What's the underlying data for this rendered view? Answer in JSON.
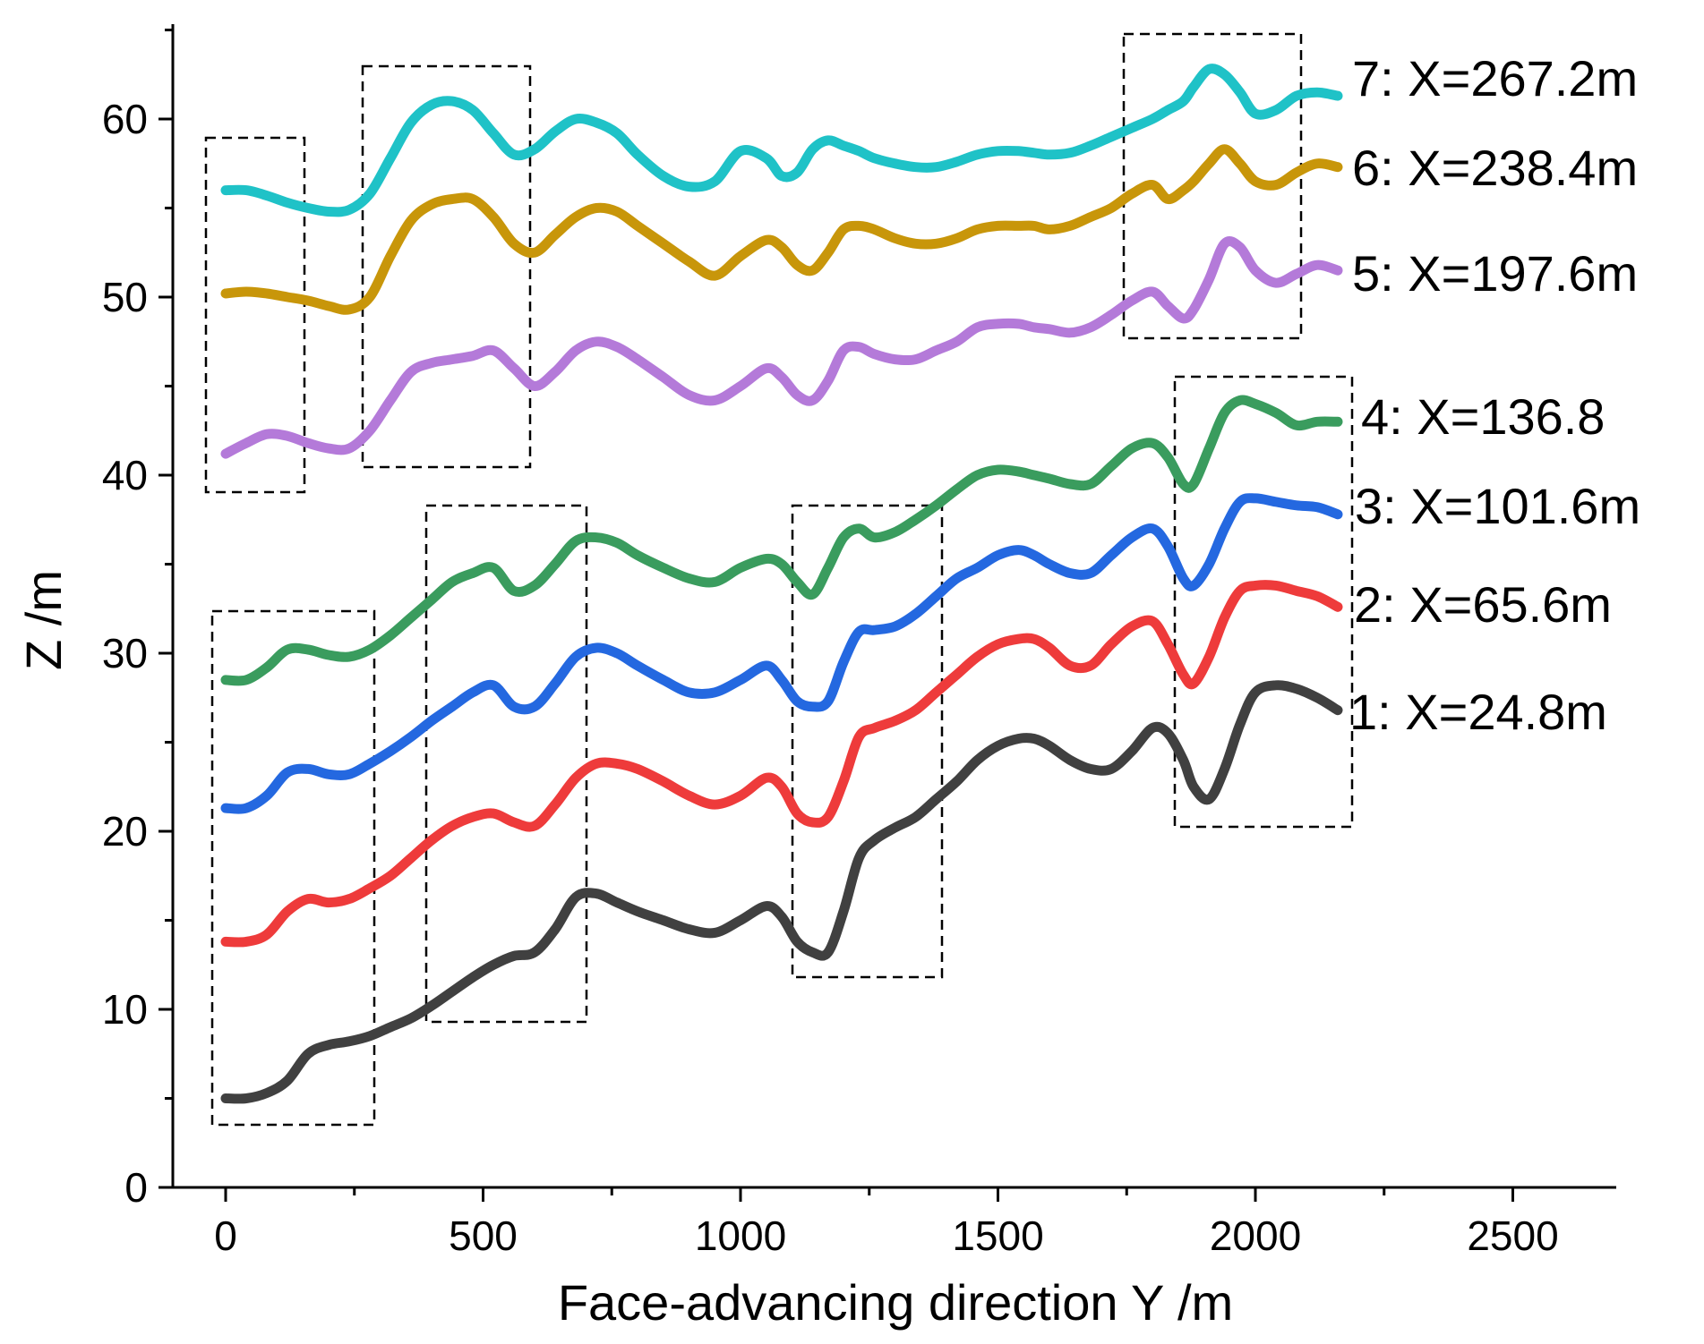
{
  "chart_data": {
    "type": "line",
    "title": "",
    "xlabel": "Face-advancing direction Y /m",
    "ylabel": "Z /m",
    "xlim": [
      -100,
      2700
    ],
    "ylim": [
      0,
      65
    ],
    "xticks": [
      0,
      500,
      1000,
      1500,
      2000,
      2500
    ],
    "yticks": [
      0,
      10,
      20,
      30,
      40,
      50,
      60
    ],
    "grid": false,
    "legend": "labels at right end of each series",
    "series": [
      {
        "name": "1: X=24.8m",
        "color": "#404040",
        "x": [
          0,
          40,
          80,
          120,
          160,
          200,
          240,
          280,
          320,
          360,
          400,
          440,
          480,
          520,
          560,
          600,
          640,
          680,
          720,
          760,
          800,
          850,
          900,
          950,
          1000,
          1050,
          1080,
          1110,
          1140,
          1170,
          1200,
          1230,
          1260,
          1300,
          1340,
          1380,
          1420,
          1460,
          1500,
          1540,
          1570,
          1600,
          1640,
          1680,
          1720,
          1760,
          1800,
          1830,
          1860,
          1880,
          1910,
          1940,
          1970,
          2000,
          2040,
          2080,
          2120,
          2160
        ],
        "y": [
          5,
          5,
          5.3,
          6,
          7.5,
          8,
          8.2,
          8.5,
          9,
          9.5,
          10.2,
          11,
          11.8,
          12.5,
          13,
          13.2,
          14.5,
          16.3,
          16.5,
          16,
          15.5,
          15,
          14.5,
          14.3,
          15,
          15.8,
          15.2,
          13.8,
          13.2,
          13.2,
          15.5,
          18.5,
          19.5,
          20.2,
          20.8,
          21.8,
          22.8,
          24,
          24.8,
          25.2,
          25.2,
          24.8,
          24,
          23.5,
          23.5,
          24.5,
          25.8,
          25.5,
          24,
          22.5,
          21.8,
          23.5,
          26,
          27.8,
          28.2,
          28,
          27.5,
          26.8
        ]
      },
      {
        "name": "2: X=65.6m",
        "color": "#ee3b3b",
        "x": [
          0,
          40,
          80,
          120,
          160,
          200,
          240,
          280,
          320,
          360,
          400,
          440,
          480,
          520,
          560,
          600,
          640,
          680,
          720,
          760,
          800,
          850,
          900,
          950,
          1000,
          1050,
          1080,
          1110,
          1140,
          1170,
          1200,
          1230,
          1260,
          1300,
          1340,
          1380,
          1420,
          1460,
          1500,
          1540,
          1570,
          1600,
          1640,
          1680,
          1720,
          1760,
          1800,
          1830,
          1860,
          1880,
          1910,
          1940,
          1970,
          2000,
          2040,
          2080,
          2120,
          2160
        ],
        "y": [
          13.8,
          13.8,
          14.2,
          15.5,
          16.2,
          16,
          16.2,
          16.8,
          17.5,
          18.5,
          19.5,
          20.3,
          20.8,
          21,
          20.5,
          20.3,
          21.5,
          23,
          23.8,
          23.8,
          23.5,
          22.8,
          22,
          21.5,
          22,
          23,
          22.5,
          21,
          20.5,
          20.8,
          22.8,
          25.3,
          25.8,
          26.2,
          26.8,
          27.8,
          28.8,
          29.8,
          30.5,
          30.8,
          30.8,
          30.3,
          29.3,
          29.3,
          30.5,
          31.5,
          31.8,
          30.5,
          28.8,
          28.3,
          29.8,
          32,
          33.5,
          33.8,
          33.8,
          33.5,
          33.2,
          32.6
        ]
      },
      {
        "name": "3: X=101.6m",
        "color": "#2468e0",
        "x": [
          0,
          40,
          80,
          120,
          160,
          200,
          240,
          280,
          320,
          360,
          400,
          440,
          480,
          520,
          560,
          600,
          640,
          680,
          720,
          760,
          800,
          850,
          900,
          950,
          1000,
          1050,
          1080,
          1110,
          1140,
          1170,
          1200,
          1230,
          1260,
          1300,
          1340,
          1380,
          1420,
          1460,
          1500,
          1540,
          1570,
          1600,
          1640,
          1680,
          1720,
          1760,
          1800,
          1830,
          1860,
          1880,
          1910,
          1940,
          1970,
          2000,
          2040,
          2080,
          2120,
          2160
        ],
        "y": [
          21.3,
          21.3,
          22,
          23.3,
          23.5,
          23.2,
          23.2,
          23.8,
          24.5,
          25.3,
          26.2,
          27,
          27.8,
          28.2,
          27,
          27,
          28.3,
          29.8,
          30.3,
          30,
          29.3,
          28.5,
          27.8,
          27.8,
          28.5,
          29.3,
          28.5,
          27.3,
          27,
          27.3,
          29.5,
          31.2,
          31.3,
          31.5,
          32.2,
          33.2,
          34.2,
          34.8,
          35.5,
          35.8,
          35.5,
          35,
          34.5,
          34.5,
          35.5,
          36.5,
          37,
          36,
          34.2,
          33.8,
          35,
          37,
          38.5,
          38.7,
          38.5,
          38.3,
          38.2,
          37.8
        ]
      },
      {
        "name": "4: X=136.8",
        "color": "#3a9c5e",
        "x": [
          0,
          40,
          80,
          120,
          160,
          200,
          240,
          280,
          320,
          360,
          400,
          440,
          480,
          520,
          560,
          600,
          640,
          680,
          720,
          760,
          800,
          850,
          900,
          950,
          1000,
          1050,
          1080,
          1110,
          1140,
          1170,
          1200,
          1230,
          1260,
          1300,
          1340,
          1380,
          1420,
          1460,
          1500,
          1540,
          1570,
          1600,
          1640,
          1680,
          1720,
          1760,
          1800,
          1830,
          1860,
          1880,
          1910,
          1940,
          1970,
          2000,
          2040,
          2080,
          2120,
          2160
        ],
        "y": [
          28.5,
          28.5,
          29.2,
          30.2,
          30.2,
          29.9,
          29.8,
          30.2,
          31,
          32,
          33,
          34,
          34.5,
          34.8,
          33.5,
          33.8,
          35,
          36.3,
          36.5,
          36.2,
          35.5,
          34.8,
          34.2,
          34,
          34.8,
          35.3,
          35,
          34,
          33.3,
          34.8,
          36.5,
          37,
          36.5,
          36.8,
          37.5,
          38.3,
          39.2,
          40,
          40.3,
          40.2,
          40,
          39.8,
          39.5,
          39.5,
          40.5,
          41.5,
          41.8,
          41,
          39.5,
          39.5,
          41.5,
          43.5,
          44.2,
          44,
          43.5,
          42.8,
          43,
          43
        ]
      },
      {
        "name": "5: X=197.6m",
        "color": "#b47ad9",
        "x": [
          0,
          40,
          80,
          120,
          160,
          200,
          240,
          280,
          320,
          360,
          400,
          440,
          480,
          520,
          560,
          600,
          640,
          680,
          720,
          760,
          800,
          850,
          900,
          950,
          1000,
          1050,
          1080,
          1110,
          1140,
          1170,
          1200,
          1230,
          1260,
          1300,
          1340,
          1380,
          1420,
          1460,
          1500,
          1540,
          1570,
          1600,
          1640,
          1680,
          1720,
          1760,
          1800,
          1830,
          1860,
          1880,
          1910,
          1940,
          1970,
          2000,
          2040,
          2080,
          2120,
          2160
        ],
        "y": [
          41.2,
          41.8,
          42.3,
          42.2,
          41.8,
          41.5,
          41.5,
          42.5,
          44.2,
          45.8,
          46.3,
          46.5,
          46.7,
          47,
          46,
          45,
          45.8,
          47,
          47.5,
          47.2,
          46.5,
          45.5,
          44.5,
          44.2,
          45,
          46,
          45.5,
          44.5,
          44.2,
          45.3,
          47,
          47.2,
          46.8,
          46.5,
          46.5,
          47,
          47.5,
          48.3,
          48.5,
          48.5,
          48.3,
          48.2,
          48,
          48.3,
          49,
          49.8,
          50.3,
          49.5,
          48.8,
          49.3,
          51,
          53,
          52.8,
          51.5,
          50.8,
          51.3,
          51.8,
          51.5
        ]
      },
      {
        "name": "6: X=238.4m",
        "color": "#c8960a",
        "x": [
          0,
          40,
          80,
          120,
          160,
          200,
          240,
          280,
          320,
          360,
          400,
          440,
          480,
          520,
          560,
          600,
          640,
          680,
          720,
          760,
          800,
          850,
          900,
          950,
          1000,
          1050,
          1080,
          1110,
          1140,
          1170,
          1200,
          1230,
          1260,
          1300,
          1340,
          1380,
          1420,
          1460,
          1500,
          1540,
          1570,
          1600,
          1640,
          1680,
          1720,
          1760,
          1800,
          1830,
          1860,
          1880,
          1910,
          1940,
          1970,
          2000,
          2040,
          2080,
          2120,
          2160
        ],
        "y": [
          50.2,
          50.3,
          50.2,
          50,
          49.8,
          49.5,
          49.3,
          50,
          52.3,
          54.3,
          55.2,
          55.5,
          55.5,
          54.5,
          53,
          52.5,
          53.5,
          54.5,
          55,
          54.8,
          54,
          53,
          52,
          51.2,
          52.3,
          53.2,
          52.8,
          51.8,
          51.5,
          52.5,
          53.8,
          54,
          53.8,
          53.3,
          53,
          53,
          53.3,
          53.8,
          54,
          54,
          54,
          53.8,
          54,
          54.5,
          55,
          55.8,
          56.3,
          55.5,
          56,
          56.5,
          57.5,
          58.3,
          57.5,
          56.5,
          56.3,
          57,
          57.5,
          57.3
        ]
      },
      {
        "name": "7: X=267.2m",
        "color": "#1fc2c7",
        "x": [
          0,
          40,
          80,
          120,
          160,
          200,
          240,
          280,
          320,
          360,
          400,
          440,
          480,
          520,
          560,
          600,
          640,
          680,
          720,
          760,
          800,
          850,
          900,
          950,
          1000,
          1050,
          1080,
          1110,
          1140,
          1170,
          1200,
          1230,
          1260,
          1300,
          1340,
          1380,
          1420,
          1460,
          1500,
          1540,
          1570,
          1600,
          1640,
          1680,
          1720,
          1760,
          1800,
          1830,
          1860,
          1880,
          1910,
          1940,
          1970,
          2000,
          2040,
          2080,
          2120,
          2160
        ],
        "y": [
          56,
          56,
          55.7,
          55.3,
          55,
          54.8,
          54.9,
          55.8,
          57.8,
          59.8,
          60.8,
          61,
          60.5,
          59.2,
          58,
          58.3,
          59.3,
          60,
          59.8,
          59.2,
          58,
          56.8,
          56.2,
          56.5,
          58.2,
          57.8,
          56.8,
          57,
          58.3,
          58.8,
          58.5,
          58.2,
          57.8,
          57.5,
          57.3,
          57.3,
          57.6,
          58,
          58.2,
          58.2,
          58.1,
          58,
          58.1,
          58.5,
          59,
          59.5,
          60,
          60.5,
          61,
          61.8,
          62.8,
          62.5,
          61.5,
          60.3,
          60.5,
          61.3,
          61.5,
          61.3
        ]
      }
    ],
    "annotations": [
      "dashed rectangles mark anomaly regions along the upper (5-7) and lower (1-4) curve groups"
    ]
  }
}
